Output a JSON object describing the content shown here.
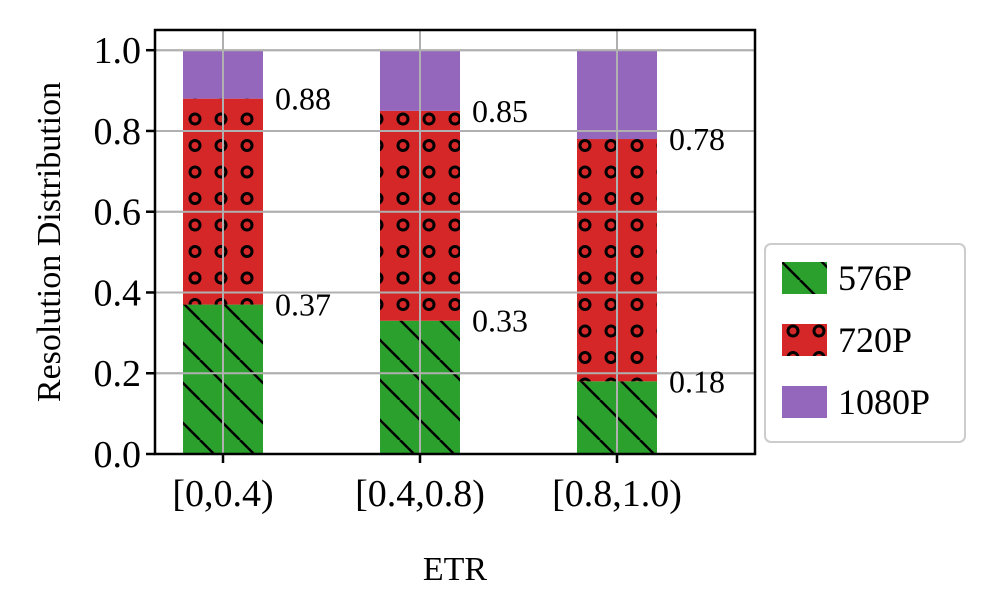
{
  "chart_data": {
    "type": "bar",
    "stacked": true,
    "categories": [
      "[0,0.4)",
      "[0.4,0.8)",
      "[0.8,1.0)"
    ],
    "series": [
      {
        "name": "576P",
        "values": [
          0.37,
          0.33,
          0.18
        ],
        "color": "#2ca02c",
        "hatch": "diagonal-lines"
      },
      {
        "name": "720P",
        "values": [
          0.51,
          0.52,
          0.6
        ],
        "color": "#d62728",
        "hatch": "circles"
      },
      {
        "name": "1080P",
        "values": [
          0.12,
          0.15,
          0.22
        ],
        "color": "#9467bd",
        "hatch": "none"
      }
    ],
    "annotations": [
      {
        "category": "[0,0.4)",
        "labels": [
          "0.37",
          "0.88"
        ]
      },
      {
        "category": "[0.4,0.8)",
        "labels": [
          "0.33",
          "0.85"
        ]
      },
      {
        "category": "[0.8,1.0)",
        "labels": [
          "0.18",
          "0.78"
        ]
      }
    ],
    "annotation_values": [
      [
        0.37,
        0.88
      ],
      [
        0.33,
        0.85
      ],
      [
        0.18,
        0.78
      ]
    ],
    "xlabel": "ETR",
    "ylabel": "Resolution Distribution",
    "ylim": [
      0,
      1.0
    ],
    "yticks": [
      "0.0",
      "0.2",
      "0.4",
      "0.6",
      "0.8",
      "1.0"
    ],
    "ytick_values": [
      0,
      0.2,
      0.4,
      0.6,
      0.8,
      1.0
    ],
    "grid": true,
    "legend_position": "right"
  }
}
